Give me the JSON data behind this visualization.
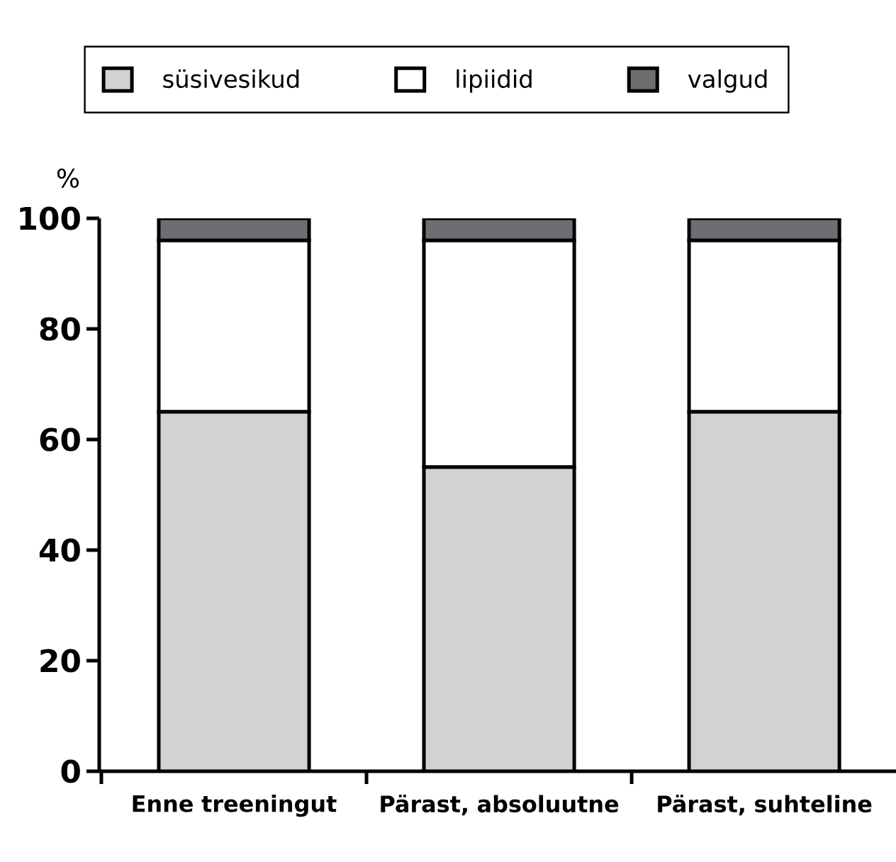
{
  "chart_data": {
    "type": "bar",
    "stacked": true,
    "ylabel": "%",
    "categories": [
      "Enne treeningut",
      "Pärast, absoluutne",
      "Pärast, suhteline"
    ],
    "series": [
      {
        "name": "süsivesikud",
        "color": "#d1d2d4",
        "values": [
          65,
          55,
          65
        ]
      },
      {
        "name": "lipiidid",
        "color": "#ffffff",
        "values": [
          31,
          41,
          31
        ]
      },
      {
        "name": "valgud",
        "color": "#6d6e71",
        "values": [
          4,
          4,
          4
        ]
      }
    ],
    "ylim": [
      0,
      100
    ],
    "yticks": [
      0,
      20,
      40,
      60,
      80,
      100
    ],
    "legend": "top"
  }
}
